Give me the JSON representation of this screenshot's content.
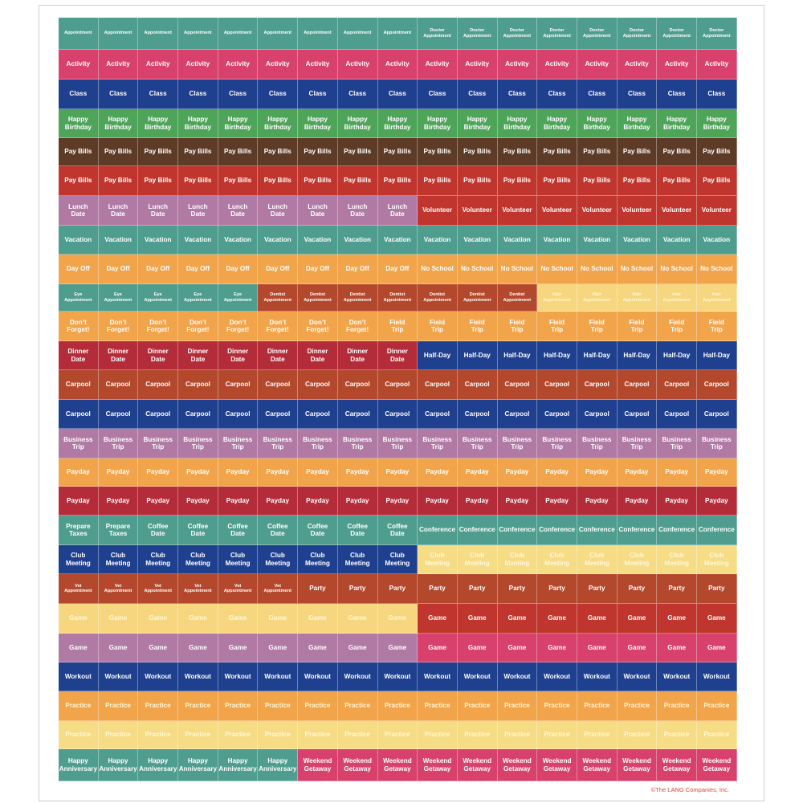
{
  "colors": {
    "teal": "#4f9d8f",
    "pink": "#d7416b",
    "navy": "#1f3f8f",
    "green": "#4ea55a",
    "brown": "#5d3b27",
    "red": "#c0352d",
    "mauve": "#b07aa5",
    "orange": "#f2a44b",
    "rust": "#b3482c",
    "crimson": "#b42b3a",
    "lightyellow": "#f7d680",
    "yellow": "#f6dc85"
  },
  "rows": [
    {
      "height": 40,
      "cells": [
        {
          "text": "Appointment",
          "color": "teal",
          "small": true,
          "count": 9
        },
        {
          "text": "Doctor\nAppointment",
          "color": "teal",
          "small": true,
          "count": 8
        }
      ]
    },
    {
      "height": 37,
      "cells": [
        {
          "text": "Activity",
          "color": "pink",
          "count": 17
        }
      ]
    },
    {
      "height": 37,
      "cells": [
        {
          "text": "Class",
          "color": "navy",
          "count": 17
        }
      ]
    },
    {
      "height": 36,
      "cells": [
        {
          "text": "Happy\nBirthday",
          "color": "green",
          "count": 17
        }
      ]
    },
    {
      "height": 35,
      "cells": [
        {
          "text": "Pay Bills",
          "color": "brown",
          "count": 17
        }
      ]
    },
    {
      "height": 37,
      "cells": [
        {
          "text": "Pay Bills",
          "color": "red",
          "count": 17
        }
      ]
    },
    {
      "height": 37,
      "cells": [
        {
          "text": "Lunch\nDate",
          "color": "mauve",
          "count": 9
        },
        {
          "text": "Volunteer",
          "color": "red",
          "count": 8
        }
      ]
    },
    {
      "height": 36,
      "cells": [
        {
          "text": "Vacation",
          "color": "teal",
          "count": 17
        }
      ]
    },
    {
      "height": 37,
      "cells": [
        {
          "text": "Day Off",
          "color": "orange",
          "count": 9
        },
        {
          "text": "No School",
          "color": "orange",
          "count": 8
        }
      ]
    },
    {
      "height": 34,
      "cells": [
        {
          "text": "Eye\nAppointment",
          "color": "teal",
          "small": true,
          "count": 5
        },
        {
          "text": "Dentist\nAppointment",
          "color": "rust",
          "small": true,
          "count": 7
        },
        {
          "text": "Hair\nAppointment",
          "color": "lightyellow",
          "small": true,
          "light": true,
          "count": 5
        }
      ]
    },
    {
      "height": 37,
      "cells": [
        {
          "text": "Don’t\nForget!",
          "color": "orange",
          "count": 8
        },
        {
          "text": "Field\nTrip",
          "color": "orange",
          "count": 9
        }
      ]
    },
    {
      "height": 36,
      "cells": [
        {
          "text": "Dinner\nDate",
          "color": "crimson",
          "count": 9
        },
        {
          "text": "Half-Day",
          "color": "navy",
          "count": 8
        }
      ]
    },
    {
      "height": 37,
      "cells": [
        {
          "text": "Carpool",
          "color": "rust",
          "count": 17
        }
      ]
    },
    {
      "height": 36,
      "cells": [
        {
          "text": "Carpool",
          "color": "navy",
          "count": 17
        }
      ]
    },
    {
      "height": 37,
      "cells": [
        {
          "text": "Business\nTrip",
          "color": "mauve",
          "count": 17
        }
      ]
    },
    {
      "height": 35,
      "cells": [
        {
          "text": "Payday",
          "color": "orange",
          "count": 17
        }
      ]
    },
    {
      "height": 36,
      "cells": [
        {
          "text": "Payday",
          "color": "crimson",
          "count": 17
        }
      ]
    },
    {
      "height": 37,
      "cells": [
        {
          "text": "Prepare\nTaxes",
          "color": "teal",
          "count": 2
        },
        {
          "text": "Coffee\nDate",
          "color": "teal",
          "count": 7
        },
        {
          "text": "Conference",
          "color": "teal",
          "count": 8
        }
      ]
    },
    {
      "height": 36,
      "cells": [
        {
          "text": "Club\nMeeting",
          "color": "navy",
          "count": 9
        },
        {
          "text": "Club\nMeeting",
          "color": "yellow",
          "light": true,
          "count": 8
        }
      ]
    },
    {
      "height": 37,
      "cells": [
        {
          "text": "Vet\nAppointment",
          "color": "rust",
          "small": true,
          "count": 6
        },
        {
          "text": "Party",
          "color": "rust",
          "count": 11
        }
      ]
    },
    {
      "height": 37,
      "cells": [
        {
          "text": "Game",
          "color": "lightyellow",
          "light": true,
          "count": 9
        },
        {
          "text": "Game",
          "color": "red",
          "count": 8
        }
      ]
    },
    {
      "height": 36,
      "cells": [
        {
          "text": "Game",
          "color": "mauve",
          "count": 9
        },
        {
          "text": "Game",
          "color": "pink",
          "count": 8
        }
      ]
    },
    {
      "height": 36,
      "cells": [
        {
          "text": "Workout",
          "color": "navy",
          "count": 17
        }
      ]
    },
    {
      "height": 37,
      "cells": [
        {
          "text": "Practice",
          "color": "orange",
          "light": true,
          "count": 17
        }
      ]
    },
    {
      "height": 35,
      "cells": [
        {
          "text": "Practice",
          "color": "yellow",
          "light": true,
          "count": 17
        }
      ]
    },
    {
      "height": 40,
      "cells": [
        {
          "text": "Happy\nAnniversary",
          "color": "teal",
          "count": 6
        },
        {
          "text": "Weekend\nGetaway",
          "color": "pink",
          "count": 11
        }
      ]
    }
  ],
  "copyright": "©The LANG Companies, Inc."
}
